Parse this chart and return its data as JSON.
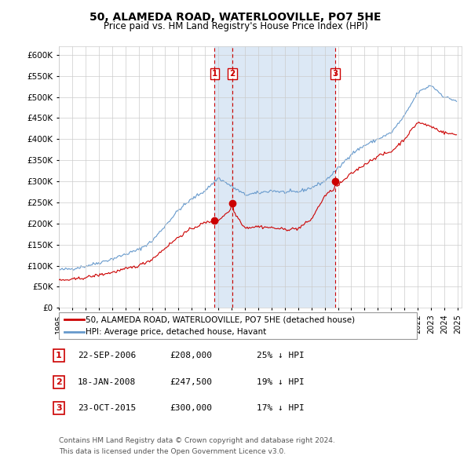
{
  "title": "50, ALAMEDA ROAD, WATERLOOVILLE, PO7 5HE",
  "subtitle": "Price paid vs. HM Land Registry's House Price Index (HPI)",
  "legend_line1": "50, ALAMEDA ROAD, WATERLOOVILLE, PO7 5HE (detached house)",
  "legend_line2": "HPI: Average price, detached house, Havant",
  "bg_color": "#ffffff",
  "grid_color": "#cccccc",
  "hpi_color": "#6699cc",
  "price_color": "#cc0000",
  "shade_color": "#dce8f5",
  "annotation_box_color": "#cc0000",
  "ylim_min": 0,
  "ylim_max": 620000,
  "ytick_step": 50000,
  "transactions": [
    {
      "label": "1",
      "date_num": 2006.72,
      "price": 208000,
      "pct": "25% ↓ HPI",
      "date_str": "22-SEP-2006"
    },
    {
      "label": "2",
      "date_num": 2008.05,
      "price": 247500,
      "pct": "19% ↓ HPI",
      "date_str": "18-JAN-2008"
    },
    {
      "label": "3",
      "date_num": 2015.81,
      "price": 300000,
      "pct": "17% ↓ HPI",
      "date_str": "23-OCT-2015"
    }
  ],
  "footer_line1": "Contains HM Land Registry data © Crown copyright and database right 2024.",
  "footer_line2": "This data is licensed under the Open Government Licence v3.0.",
  "xlim_min": 1995,
  "xlim_max": 2025.3,
  "xtick_years": [
    1995,
    1996,
    1997,
    1998,
    1999,
    2000,
    2001,
    2002,
    2003,
    2004,
    2005,
    2006,
    2007,
    2008,
    2009,
    2010,
    2011,
    2012,
    2013,
    2014,
    2015,
    2016,
    2017,
    2018,
    2019,
    2020,
    2021,
    2022,
    2023,
    2024,
    2025
  ]
}
